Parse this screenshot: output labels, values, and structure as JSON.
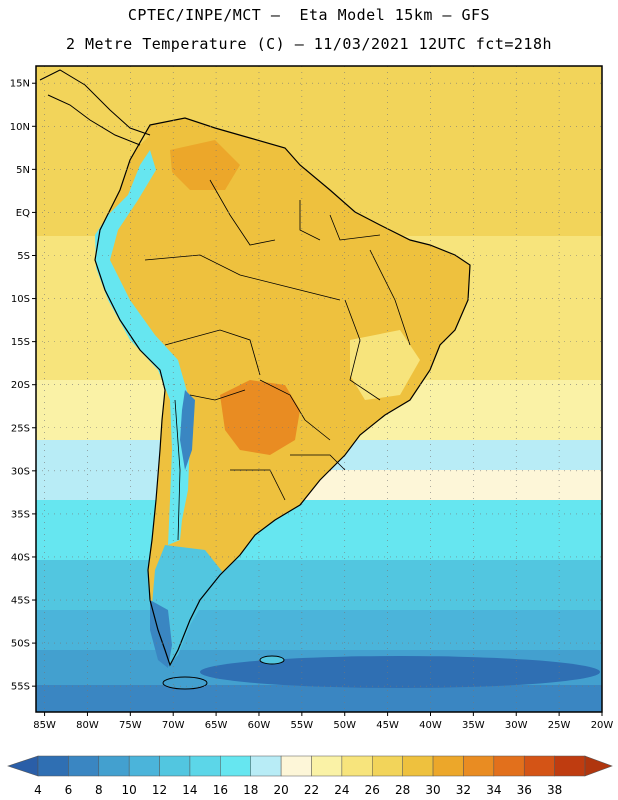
{
  "header": {
    "line1": "CPTEC/INPE/MCT –  Eta Model 15km – GFS",
    "line2": "2 Metre Temperature (C) – 11/03/2021 12UTC fct=218h"
  },
  "map": {
    "lon_range": [
      -86,
      -20
    ],
    "lat_range": [
      -58,
      17
    ],
    "lat_ticks": [
      {
        "value": 15,
        "label": "15N"
      },
      {
        "value": 10,
        "label": "10N"
      },
      {
        "value": 5,
        "label": "5N"
      },
      {
        "value": 0,
        "label": "EQ"
      },
      {
        "value": -5,
        "label": "5S"
      },
      {
        "value": -10,
        "label": "10S"
      },
      {
        "value": -15,
        "label": "15S"
      },
      {
        "value": -20,
        "label": "20S"
      },
      {
        "value": -25,
        "label": "25S"
      },
      {
        "value": -30,
        "label": "30S"
      },
      {
        "value": -35,
        "label": "35S"
      },
      {
        "value": -40,
        "label": "40S"
      },
      {
        "value": -45,
        "label": "45S"
      },
      {
        "value": -50,
        "label": "50S"
      },
      {
        "value": -55,
        "label": "55S"
      }
    ],
    "lon_ticks": [
      {
        "value": -85,
        "label": "85W"
      },
      {
        "value": -80,
        "label": "80W"
      },
      {
        "value": -75,
        "label": "75W"
      },
      {
        "value": -70,
        "label": "70W"
      },
      {
        "value": -65,
        "label": "65W"
      },
      {
        "value": -60,
        "label": "60W"
      },
      {
        "value": -55,
        "label": "55W"
      },
      {
        "value": -50,
        "label": "50W"
      },
      {
        "value": -45,
        "label": "45W"
      },
      {
        "value": -40,
        "label": "40W"
      },
      {
        "value": -35,
        "label": "35W"
      },
      {
        "value": -30,
        "label": "30W"
      },
      {
        "value": -25,
        "label": "25W"
      },
      {
        "value": -20,
        "label": "20W"
      }
    ]
  },
  "colorbar": {
    "levels": [
      "4",
      "6",
      "8",
      "10",
      "12",
      "14",
      "16",
      "18",
      "20",
      "22",
      "24",
      "26",
      "28",
      "30",
      "32",
      "34",
      "36",
      "38"
    ],
    "colors": [
      "#2f6fb3",
      "#3a86c2",
      "#43a0cf",
      "#4bb4da",
      "#52c6e0",
      "#5cd6e8",
      "#66e6f0",
      "#b8ecf6",
      "#fdf6d8",
      "#faf2a6",
      "#f7e47c",
      "#f2d45a",
      "#eec13e",
      "#eca72a",
      "#e98c22",
      "#e2701c",
      "#d45416",
      "#bf3c10"
    ],
    "under_color": "#2a5ea8",
    "over_color": "#b0360e"
  },
  "colors": {
    "ocean_cool": "#4bb4da",
    "ocean_warm": "#f7e47c",
    "land": "#eec13e",
    "land_hot": "#e98c22",
    "andes": "#66e6f0",
    "antarctic_deep": "#2f6fb3"
  }
}
